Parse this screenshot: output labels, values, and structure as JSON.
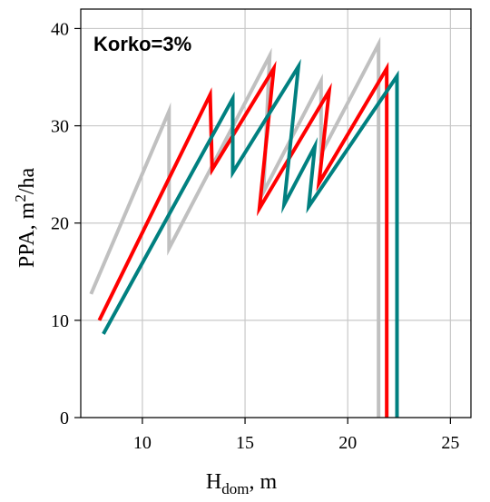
{
  "chart_data": {
    "type": "line",
    "annotation": "Korko=3%",
    "xlabel": {
      "main": "H",
      "sub": "dom",
      "rest": ", m"
    },
    "ylabel": {
      "main": "PPA, m",
      "sup": "2",
      "rest": "/ha"
    },
    "xlim": [
      7,
      26
    ],
    "ylim": [
      0,
      42
    ],
    "xticks": [
      10,
      15,
      20,
      25
    ],
    "yticks": [
      0,
      10,
      20,
      30,
      40
    ],
    "grid": true,
    "series": [
      {
        "color": "#c0c0c0",
        "x": [
          7.5,
          11.3,
          11.3,
          16.2,
          15.9,
          18.7,
          18.7,
          21.5,
          21.5
        ],
        "y": [
          12.7,
          31.5,
          17.4,
          37.2,
          23.2,
          34.6,
          27.1,
          38.4,
          0
        ]
      },
      {
        "color": "#ff0000",
        "x": [
          7.9,
          13.3,
          13.4,
          16.4,
          15.7,
          19.1,
          18.6,
          21.9,
          21.9
        ],
        "y": [
          10.0,
          33.2,
          25.5,
          35.9,
          21.5,
          33.6,
          24.1,
          35.9,
          0
        ]
      },
      {
        "color": "#008080",
        "x": [
          8.1,
          14.4,
          14.4,
          17.6,
          16.9,
          18.4,
          18.1,
          22.4,
          22.4
        ],
        "y": [
          8.6,
          32.8,
          25.2,
          36.1,
          21.9,
          27.9,
          21.7,
          35.1,
          0
        ]
      }
    ]
  }
}
